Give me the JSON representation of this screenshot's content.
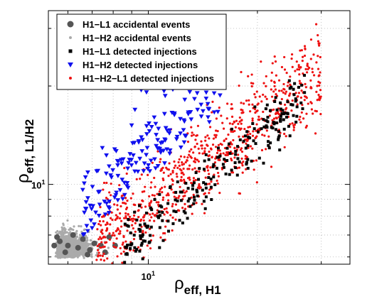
{
  "chart_data": {
    "type": "scatter",
    "x_scale": "log",
    "y_scale": "log",
    "grid": true,
    "legend_position": "top-left",
    "xlabel": "ρ",
    "xlabel_sub": "eff, H1",
    "ylabel": "ρ",
    "ylabel_sub": "eff, L1/H2",
    "xlim": [
      5.3,
      36
    ],
    "ylim": [
      5.7,
      34
    ],
    "x_ticks": [
      {
        "value": 10,
        "label": "10",
        "exp": "1"
      }
    ],
    "y_ticks": [
      {
        "value": 10,
        "label": "10",
        "exp": "1"
      }
    ],
    "series": [
      {
        "name": "H1−L1 accidental events",
        "marker": "circle",
        "color": "#555555"
      },
      {
        "name": "H1−H2 accidental events",
        "marker": "dot",
        "color": "#aaaaaa"
      },
      {
        "name": "H1−L1 detected injections",
        "marker": "square",
        "color": "#000000"
      },
      {
        "name": "H1−H2 detected injections",
        "marker": "triangle-down",
        "color": "#1010ee"
      },
      {
        "name": "H1−H2−L1 detected injections",
        "marker": "dot",
        "color": "#ee1111"
      }
    ]
  }
}
